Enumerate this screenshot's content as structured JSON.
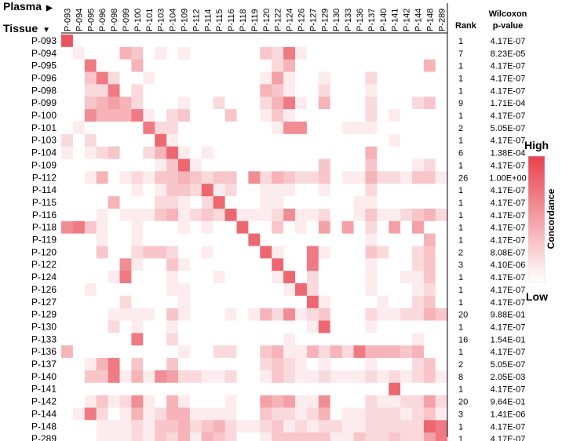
{
  "headers": {
    "plasma": "Plasma",
    "tissue": "Tissue",
    "rank": "Rank",
    "wilcoxon_line1": "Wilcoxon",
    "wilcoxon_line2": "p-value",
    "legend_high": "High",
    "legend_low": "Low",
    "legend_title": "Concordance"
  },
  "colors": {
    "high": "#e8414e",
    "low": "#ffffff",
    "grid_line": "#000000"
  },
  "chart_data": {
    "type": "heatmap",
    "x_label": "Plasma",
    "y_label": "Tissue",
    "value_scale": [
      0,
      1
    ],
    "columns": [
      "P-093",
      "P-094",
      "P-095",
      "P-096",
      "P-098",
      "P-099",
      "P-100",
      "P-101",
      "P-103",
      "P-104",
      "P-109",
      "P-112",
      "P-114",
      "P-115",
      "P-116",
      "P-118",
      "P-119",
      "P-120",
      "P-122",
      "P-124",
      "P-126",
      "P-127",
      "P-129",
      "P-130",
      "P-133",
      "P-136",
      "P-137",
      "P-140",
      "P-141",
      "P-142",
      "P-144",
      "P-148",
      "P-289"
    ],
    "rows": [
      "P-093",
      "P-094",
      "P-095",
      "P-096",
      "P-098",
      "P-099",
      "P-100",
      "P-101",
      "P-103",
      "P-104",
      "P-109",
      "P-112",
      "P-114",
      "P-115",
      "P-116",
      "P-118",
      "P-119",
      "P-120",
      "P-122",
      "P-124",
      "P-126",
      "P-127",
      "P-129",
      "P-130",
      "P-133",
      "P-136",
      "P-137",
      "P-140",
      "P-141",
      "P-142",
      "P-144",
      "P-148",
      "P-289"
    ],
    "values": [
      [
        0.9,
        0,
        0,
        0,
        0,
        0,
        0,
        0,
        0,
        0,
        0,
        0,
        0,
        0,
        0,
        0,
        0,
        0,
        0,
        0,
        0,
        0,
        0,
        0,
        0,
        0,
        0,
        0,
        0,
        0,
        0,
        0,
        0
      ],
      [
        0,
        0.1,
        0,
        0,
        0,
        0.4,
        0.3,
        0,
        0.1,
        0,
        0.1,
        0,
        0,
        0,
        0,
        0,
        0,
        0.3,
        0.2,
        0.7,
        0.1,
        0,
        0,
        0,
        0,
        0,
        0,
        0,
        0,
        0,
        0,
        0,
        0
      ],
      [
        0,
        0,
        0.7,
        0,
        0,
        0,
        0.4,
        0,
        0,
        0,
        0,
        0,
        0,
        0,
        0,
        0,
        0,
        0,
        0.2,
        0.4,
        0,
        0,
        0,
        0,
        0,
        0,
        0,
        0,
        0,
        0,
        0,
        0.4,
        0
      ],
      [
        0,
        0,
        0.3,
        0.7,
        0.2,
        0,
        0,
        0.1,
        0,
        0,
        0,
        0,
        0,
        0,
        0,
        0,
        0,
        0.1,
        0.5,
        0.1,
        0,
        0,
        0.1,
        0,
        0,
        0,
        0.2,
        0,
        0,
        0,
        0,
        0,
        0
      ],
      [
        0,
        0,
        0.2,
        0.2,
        0.7,
        0,
        0.2,
        0,
        0,
        0,
        0,
        0,
        0,
        0,
        0,
        0,
        0,
        0.4,
        0.3,
        0.1,
        0,
        0,
        0.2,
        0,
        0,
        0,
        0.1,
        0,
        0,
        0,
        0,
        0,
        0
      ],
      [
        0,
        0,
        0.3,
        0.4,
        0.5,
        0.4,
        0.2,
        0,
        0,
        0,
        0.1,
        0,
        0,
        0.2,
        0,
        0,
        0,
        0.2,
        0.4,
        0.7,
        0.1,
        0,
        0.4,
        0,
        0,
        0,
        0.2,
        0,
        0,
        0,
        0.2,
        0.3,
        0
      ],
      [
        0,
        0,
        0.6,
        0.4,
        0.4,
        0.4,
        0.7,
        0.1,
        0,
        0.2,
        0.3,
        0,
        0,
        0,
        0.3,
        0,
        0,
        0.1,
        0.3,
        0.1,
        0,
        0,
        0,
        0,
        0,
        0,
        0.2,
        0,
        0.1,
        0,
        0,
        0,
        0
      ],
      [
        0,
        0.1,
        0,
        0,
        0,
        0,
        0,
        0.7,
        0.2,
        0.2,
        0,
        0,
        0,
        0,
        0,
        0,
        0,
        0,
        0.1,
        0.6,
        0.6,
        0,
        0,
        0,
        0.1,
        0.1,
        0.1,
        0,
        0,
        0,
        0,
        0,
        0
      ],
      [
        0.2,
        0,
        0.2,
        0,
        0,
        0,
        0,
        0,
        0.8,
        0.1,
        0,
        0,
        0,
        0,
        0,
        0,
        0,
        0,
        0,
        0,
        0,
        0,
        0,
        0,
        0,
        0,
        0,
        0,
        0.1,
        0,
        0,
        0,
        0
      ],
      [
        0.1,
        0,
        0.1,
        0.2,
        0.3,
        0,
        0,
        0.2,
        0.4,
        0.8,
        0.1,
        0,
        0.1,
        0,
        0,
        0,
        0,
        0,
        0,
        0,
        0,
        0,
        0,
        0,
        0,
        0,
        0.4,
        0,
        0,
        0,
        0,
        0,
        0
      ],
      [
        0,
        0,
        0,
        0,
        0,
        0,
        0,
        0,
        0.1,
        0.3,
        0.8,
        0.1,
        0,
        0,
        0,
        0,
        0,
        0,
        0,
        0,
        0,
        0,
        0.3,
        0,
        0,
        0,
        0.3,
        0,
        0,
        0,
        0.1,
        0.2,
        0
      ],
      [
        0,
        0,
        0.1,
        0.4,
        0,
        0.1,
        0.2,
        0.1,
        0.3,
        0.3,
        0.4,
        0.3,
        0.2,
        0.3,
        0.3,
        0,
        0.6,
        0.2,
        0.4,
        0.3,
        0.2,
        0.2,
        0.3,
        0,
        0.1,
        0.1,
        0.4,
        0.2,
        0.2,
        0.1,
        0.3,
        0.3,
        0.1
      ],
      [
        0,
        0,
        0,
        0,
        0,
        0,
        0.1,
        0,
        0.1,
        0.3,
        0.3,
        0.2,
        0.8,
        0.1,
        0.2,
        0,
        0,
        0.1,
        0.1,
        0.1,
        0,
        0,
        0.1,
        0,
        0,
        0,
        0.2,
        0,
        0,
        0,
        0,
        0,
        0
      ],
      [
        0,
        0,
        0,
        0,
        0.4,
        0,
        0,
        0,
        0.2,
        0.2,
        0.1,
        0,
        0.2,
        0.8,
        0,
        0,
        0,
        0.1,
        0.1,
        0,
        0,
        0,
        0,
        0,
        0,
        0.1,
        0.1,
        0,
        0,
        0,
        0,
        0,
        0
      ],
      [
        0,
        0,
        0,
        0.1,
        0,
        0.1,
        0.1,
        0.1,
        0.3,
        0.4,
        0.1,
        0.2,
        0.3,
        0.2,
        0.8,
        0.1,
        0.1,
        0.1,
        0.2,
        0.6,
        0.1,
        0.1,
        0.2,
        0,
        0,
        0.1,
        0.3,
        0.1,
        0.1,
        0.2,
        0.3,
        0.4,
        0.2
      ],
      [
        0.6,
        0.7,
        0.3,
        0.1,
        0,
        0,
        0.1,
        0,
        0,
        0,
        0.1,
        0,
        0.1,
        0,
        0,
        0.8,
        0,
        0,
        0.3,
        0,
        0.1,
        0,
        0.5,
        0,
        0.5,
        0,
        0.2,
        0,
        0.5,
        0,
        0.5,
        0,
        0
      ],
      [
        0,
        0,
        0,
        0.1,
        0,
        0,
        0.1,
        0,
        0,
        0,
        0,
        0,
        0,
        0,
        0,
        0,
        0.8,
        0,
        0,
        0,
        0,
        0,
        0,
        0,
        0,
        0,
        0.1,
        0,
        0,
        0,
        0,
        0.4,
        0
      ],
      [
        0,
        0,
        0,
        0.3,
        0,
        0,
        0.2,
        0.3,
        0.3,
        0.2,
        0,
        0,
        0.1,
        0,
        0,
        0,
        0,
        0.8,
        0.1,
        0,
        0,
        0.7,
        0.1,
        0,
        0,
        0,
        0.3,
        0.2,
        0,
        0,
        0.2,
        0.3,
        0
      ],
      [
        0,
        0,
        0,
        0,
        0,
        0.6,
        0.1,
        0,
        0,
        0.3,
        0.1,
        0,
        0,
        0,
        0,
        0,
        0,
        0,
        0.8,
        0,
        0,
        0.7,
        0,
        0,
        0,
        0,
        0.1,
        0,
        0,
        0,
        0.2,
        0.3,
        0
      ],
      [
        0,
        0,
        0,
        0,
        0.1,
        0.7,
        0,
        0,
        0,
        0.1,
        0,
        0,
        0,
        0.1,
        0,
        0,
        0,
        0,
        0.1,
        0.8,
        0,
        0.2,
        0,
        0,
        0,
        0,
        0.1,
        0,
        0,
        0.1,
        0.1,
        0.3,
        0
      ],
      [
        0,
        0,
        0.1,
        0,
        0,
        0,
        0,
        0,
        0,
        0.1,
        0.1,
        0,
        0,
        0,
        0,
        0,
        0,
        0,
        0,
        0.1,
        0.8,
        0.2,
        0,
        0,
        0,
        0,
        0.1,
        0,
        0,
        0,
        0.1,
        0.2,
        0
      ],
      [
        0,
        0,
        0,
        0,
        0,
        0.2,
        0,
        0,
        0,
        0,
        0.1,
        0,
        0,
        0,
        0,
        0,
        0,
        0,
        0,
        0,
        0,
        0.8,
        0.1,
        0,
        0,
        0,
        0,
        0.1,
        0,
        0,
        0.2,
        0.3,
        0
      ],
      [
        0,
        0,
        0,
        0,
        0.1,
        0.1,
        0.1,
        0.1,
        0,
        0.3,
        0.1,
        0,
        0,
        0,
        0.1,
        0,
        0.1,
        0.4,
        0.2,
        0.6,
        0.1,
        0.2,
        0.3,
        0,
        0,
        0,
        0.2,
        0.1,
        0.1,
        0.2,
        0.2,
        0.4,
        0.3
      ],
      [
        0,
        0,
        0,
        0,
        0.2,
        0,
        0.1,
        0,
        0,
        0.1,
        0,
        0,
        0,
        0,
        0,
        0,
        0,
        0,
        0,
        0,
        0,
        0.1,
        0.8,
        0,
        0,
        0,
        0.1,
        0,
        0,
        0,
        0,
        0,
        0
      ],
      [
        0,
        0,
        0,
        0,
        0,
        0,
        0.7,
        0,
        0,
        0.2,
        0,
        0,
        0,
        0,
        0,
        0,
        0,
        0,
        0,
        0.1,
        0,
        0,
        0,
        0,
        0,
        0,
        0,
        0,
        0,
        0,
        0.1,
        0,
        0
      ],
      [
        0.4,
        0,
        0,
        0,
        0,
        0,
        0,
        0,
        0,
        0,
        0.1,
        0,
        0,
        0.2,
        0.2,
        0,
        0,
        0.3,
        0.4,
        0.1,
        0.1,
        0.4,
        0.2,
        0.4,
        0.2,
        0.7,
        0.4,
        0.4,
        0.4,
        0.3,
        0.4,
        0,
        0
      ],
      [
        0,
        0,
        0.1,
        0.4,
        0.7,
        0,
        0.3,
        0,
        0,
        0.3,
        0,
        0,
        0,
        0,
        0,
        0,
        0,
        0.2,
        0.3,
        0.2,
        0.1,
        0,
        0.1,
        0,
        0,
        0,
        0.1,
        0,
        0,
        0,
        0.2,
        0.3,
        0
      ],
      [
        0,
        0,
        0.3,
        0.3,
        0.7,
        0.1,
        0.4,
        0.1,
        0.6,
        0.5,
        0.2,
        0.2,
        0.1,
        0.1,
        0.2,
        0,
        0,
        0.1,
        0.3,
        0.2,
        0.1,
        0.1,
        0.2,
        0.1,
        0.1,
        0.1,
        0.2,
        0.1,
        0.2,
        0.1,
        0.2,
        0.3,
        0.1
      ],
      [
        0,
        0,
        0,
        0,
        0,
        0,
        0,
        0,
        0,
        0,
        0,
        0,
        0,
        0,
        0,
        0,
        0,
        0,
        0,
        0,
        0,
        0,
        0,
        0,
        0,
        0,
        0,
        0,
        0.8,
        0,
        0,
        0,
        0
      ],
      [
        0,
        0,
        0.1,
        0.3,
        0.1,
        0.2,
        0.6,
        0.1,
        0,
        0.4,
        0.1,
        0,
        0,
        0,
        0.1,
        0,
        0,
        0.5,
        0.4,
        0.5,
        0.1,
        0.1,
        0.6,
        0,
        0,
        0,
        0.2,
        0.1,
        0.1,
        0.2,
        0.2,
        0.5,
        0.2
      ],
      [
        0,
        0.1,
        0.7,
        0.2,
        0,
        0.1,
        0.4,
        0.1,
        0.2,
        0.4,
        0.4,
        0.1,
        0.1,
        0.1,
        0.1,
        0,
        0,
        0.3,
        0.2,
        0.2,
        0.1,
        0.2,
        0.4,
        0,
        0.1,
        0.1,
        0.2,
        0.2,
        0.2,
        0.1,
        0.2,
        0.3,
        0.1
      ],
      [
        0,
        0,
        0,
        0.1,
        0.1,
        0.1,
        0.2,
        0.1,
        0.3,
        0.3,
        0.4,
        0.2,
        0.3,
        0.4,
        0.2,
        0.1,
        0.1,
        0.2,
        0.3,
        0.1,
        0.2,
        0.1,
        0.2,
        0.2,
        0.1,
        0.1,
        0.2,
        0.2,
        0.2,
        0.2,
        0.2,
        0.8,
        0.7
      ],
      [
        0,
        0,
        0,
        0.1,
        0.1,
        0.1,
        0.2,
        0.1,
        0.3,
        0.2,
        0.4,
        0.1,
        0.4,
        0.3,
        0.2,
        0,
        0,
        0.1,
        0.3,
        0.3,
        0.3,
        0.3,
        0.3,
        0.1,
        0.1,
        0.3,
        0.2,
        0.2,
        0.3,
        0.2,
        0.2,
        0.5,
        0.7
      ]
    ],
    "rank": [
      1,
      7,
      1,
      1,
      1,
      9,
      1,
      2,
      1,
      6,
      1,
      26,
      1,
      1,
      1,
      1,
      1,
      2,
      3,
      1,
      1,
      1,
      20,
      1,
      16,
      1,
      2,
      8,
      1,
      20,
      3,
      1,
      1
    ],
    "p_value": [
      "4.17E-07",
      "8.23E-05",
      "4.17E-07",
      "4.17E-07",
      "4.17E-07",
      "1.71E-04",
      "4.17E-07",
      "5.05E-07",
      "4.17E-07",
      "1.38E-04",
      "4.17E-07",
      "1.00E+00",
      "4.17E-07",
      "4.17E-07",
      "4.17E-07",
      "4.17E-07",
      "4.17E-07",
      "8.08E-07",
      "4.10E-06",
      "4.17E-07",
      "4.17E-07",
      "4.17E-07",
      "9.88E-01",
      "4.17E-07",
      "1.54E-01",
      "4.17E-07",
      "5.05E-07",
      "2.05E-03",
      "4.17E-07",
      "9.64E-01",
      "1.41E-06",
      "4.17E-07",
      "4.17E-07"
    ]
  }
}
